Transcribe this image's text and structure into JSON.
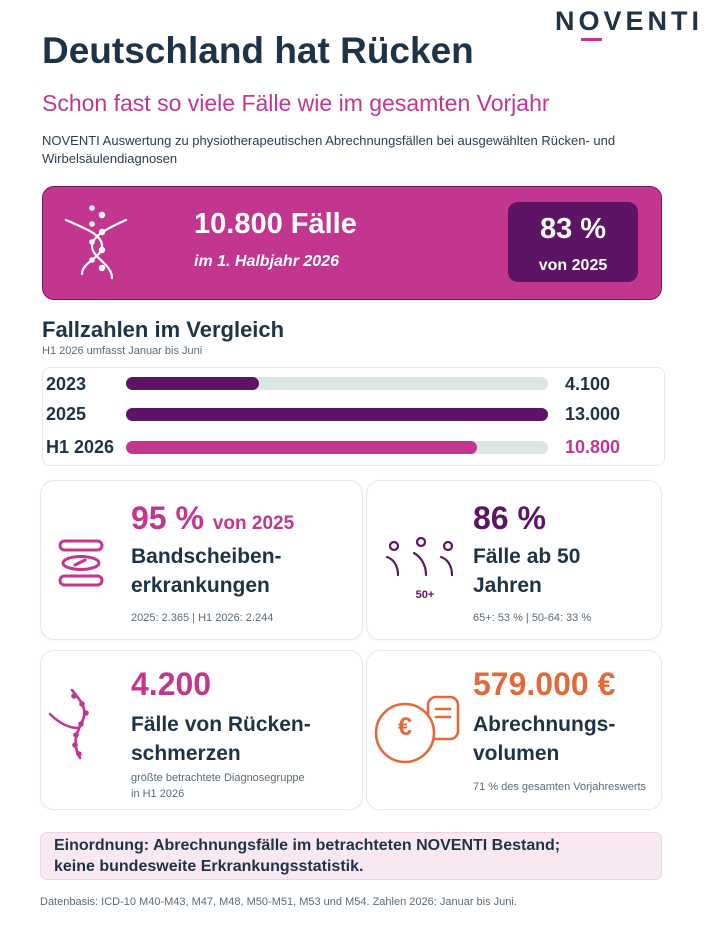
{
  "brand": {
    "logo_pre": "N",
    "logo_o": "O",
    "logo_post": "VENTI"
  },
  "header": {
    "title": "Deutschland hat Rücken",
    "subtitle": "Schon fast so viele Fälle wie im gesamten Vorjahr",
    "intro": "NOVENTI Auswertung zu physiotherapeutischen Abrechnungsfällen bei ausgewählten Rücken- und Wirbelsäulendiagnosen"
  },
  "hero": {
    "icon": "spine-icon",
    "cases": "10.800 Fälle",
    "period": "im 1. Halbjahr 2026",
    "percent": "83 %",
    "percent_label": "von 2025"
  },
  "comparison": {
    "title": "Fallzahlen im Vergleich",
    "note": "H1 2026 umfasst Januar bis Juni",
    "scale_max": 13000,
    "rows": [
      {
        "label": "2023",
        "value": 4100,
        "display": "4.100",
        "color": "#5d1465"
      },
      {
        "label": "2025",
        "value": 13000,
        "display": "13.000",
        "color": "#5d1465"
      },
      {
        "label": "H1 2026",
        "value": 10800,
        "display": "10.800",
        "color": "#c2368f"
      }
    ]
  },
  "cards": {
    "disc": {
      "icon": "spinal-disc-icon",
      "stat": "95 %",
      "stat_suffix": "von 2025",
      "line1": "Bandscheiben-",
      "line2": "erkrankungen",
      "note": "2025: 2.365 | H1 2026: 2.244"
    },
    "age": {
      "icon": "people-age-icon",
      "icon_label": "50+",
      "stat": "86 %",
      "line1": "Fälle ab 50",
      "line2": "Jahren",
      "note": "65+: 53 % | 50-64: 33 %"
    },
    "backpain": {
      "icon": "back-pain-icon",
      "stat": "4.200",
      "line1": "Fälle von Rücken-",
      "line2": "schmerzen",
      "note_line1": "größte betrachtete Diagnosegruppe",
      "note_line2": "in H1 2026"
    },
    "volume": {
      "icon": "euro-invoice-icon",
      "icon_symbol": "€",
      "stat": "579.000 €",
      "line1": "Abrechnungs-",
      "line2": "volumen",
      "note": "71 % des gesamten Vorjahreswerts"
    }
  },
  "note": {
    "line1": "Einordnung: Abrechnungsfälle im betrachteten NOVENTI Bestand;",
    "line2": "keine bundesweite Erkrankungsstatistik."
  },
  "footer": {
    "source": "Datenbasis: ICD-10 M40-M43, M47, M48, M50-M51, M53 und M54. Zahlen 2026: Januar bis Juni."
  },
  "colors": {
    "navy": "#1f3347",
    "magenta": "#c2368f",
    "purple": "#5d1465",
    "orange": "#e26a3a",
    "track": "#dde5e3"
  }
}
